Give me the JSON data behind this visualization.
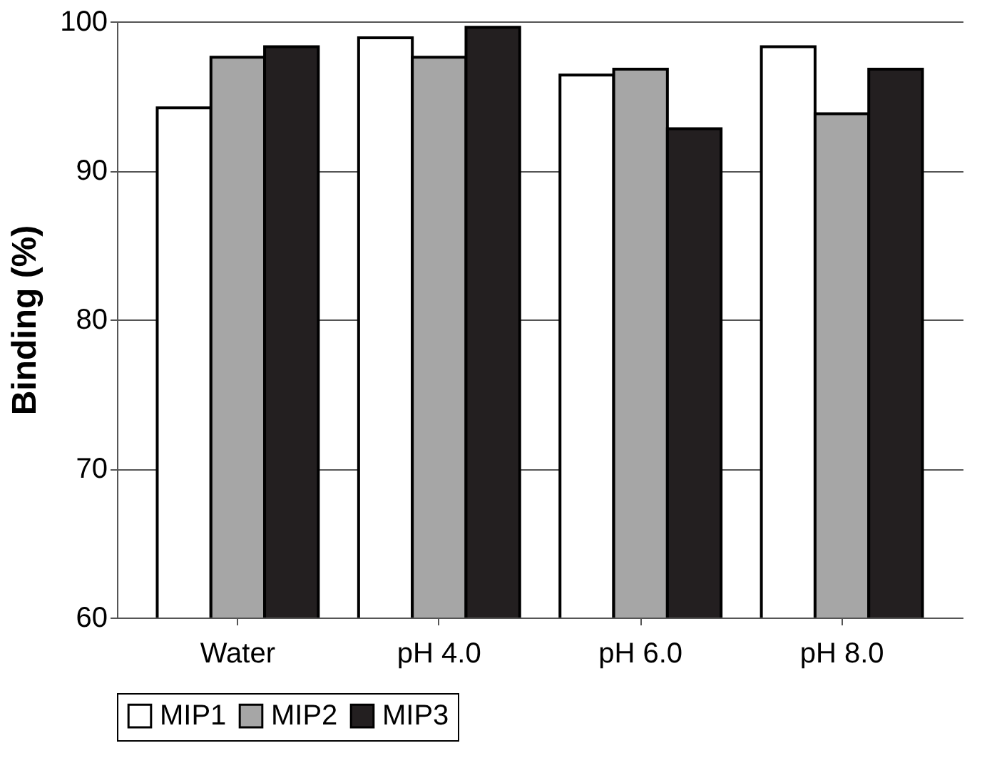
{
  "chart_data": {
    "type": "bar",
    "ylabel": "Binding (%)",
    "categories": [
      "Water",
      "pH 4.0",
      "pH 6.0",
      "pH 8.0"
    ],
    "series": [
      {
        "name": "MIP1",
        "color": "#ffffff",
        "values": [
          94.2,
          98.9,
          96.4,
          98.3
        ]
      },
      {
        "name": "MIP2",
        "color": "#a6a6a6",
        "values": [
          97.6,
          97.6,
          96.8,
          93.8
        ]
      },
      {
        "name": "MIP3",
        "color": "#231f20",
        "values": [
          98.3,
          99.6,
          92.8,
          96.8
        ]
      }
    ],
    "ylim": [
      60,
      100
    ],
    "yticks": [
      60,
      70,
      80,
      90,
      100
    ],
    "grid": "y",
    "legend": "bottom"
  }
}
